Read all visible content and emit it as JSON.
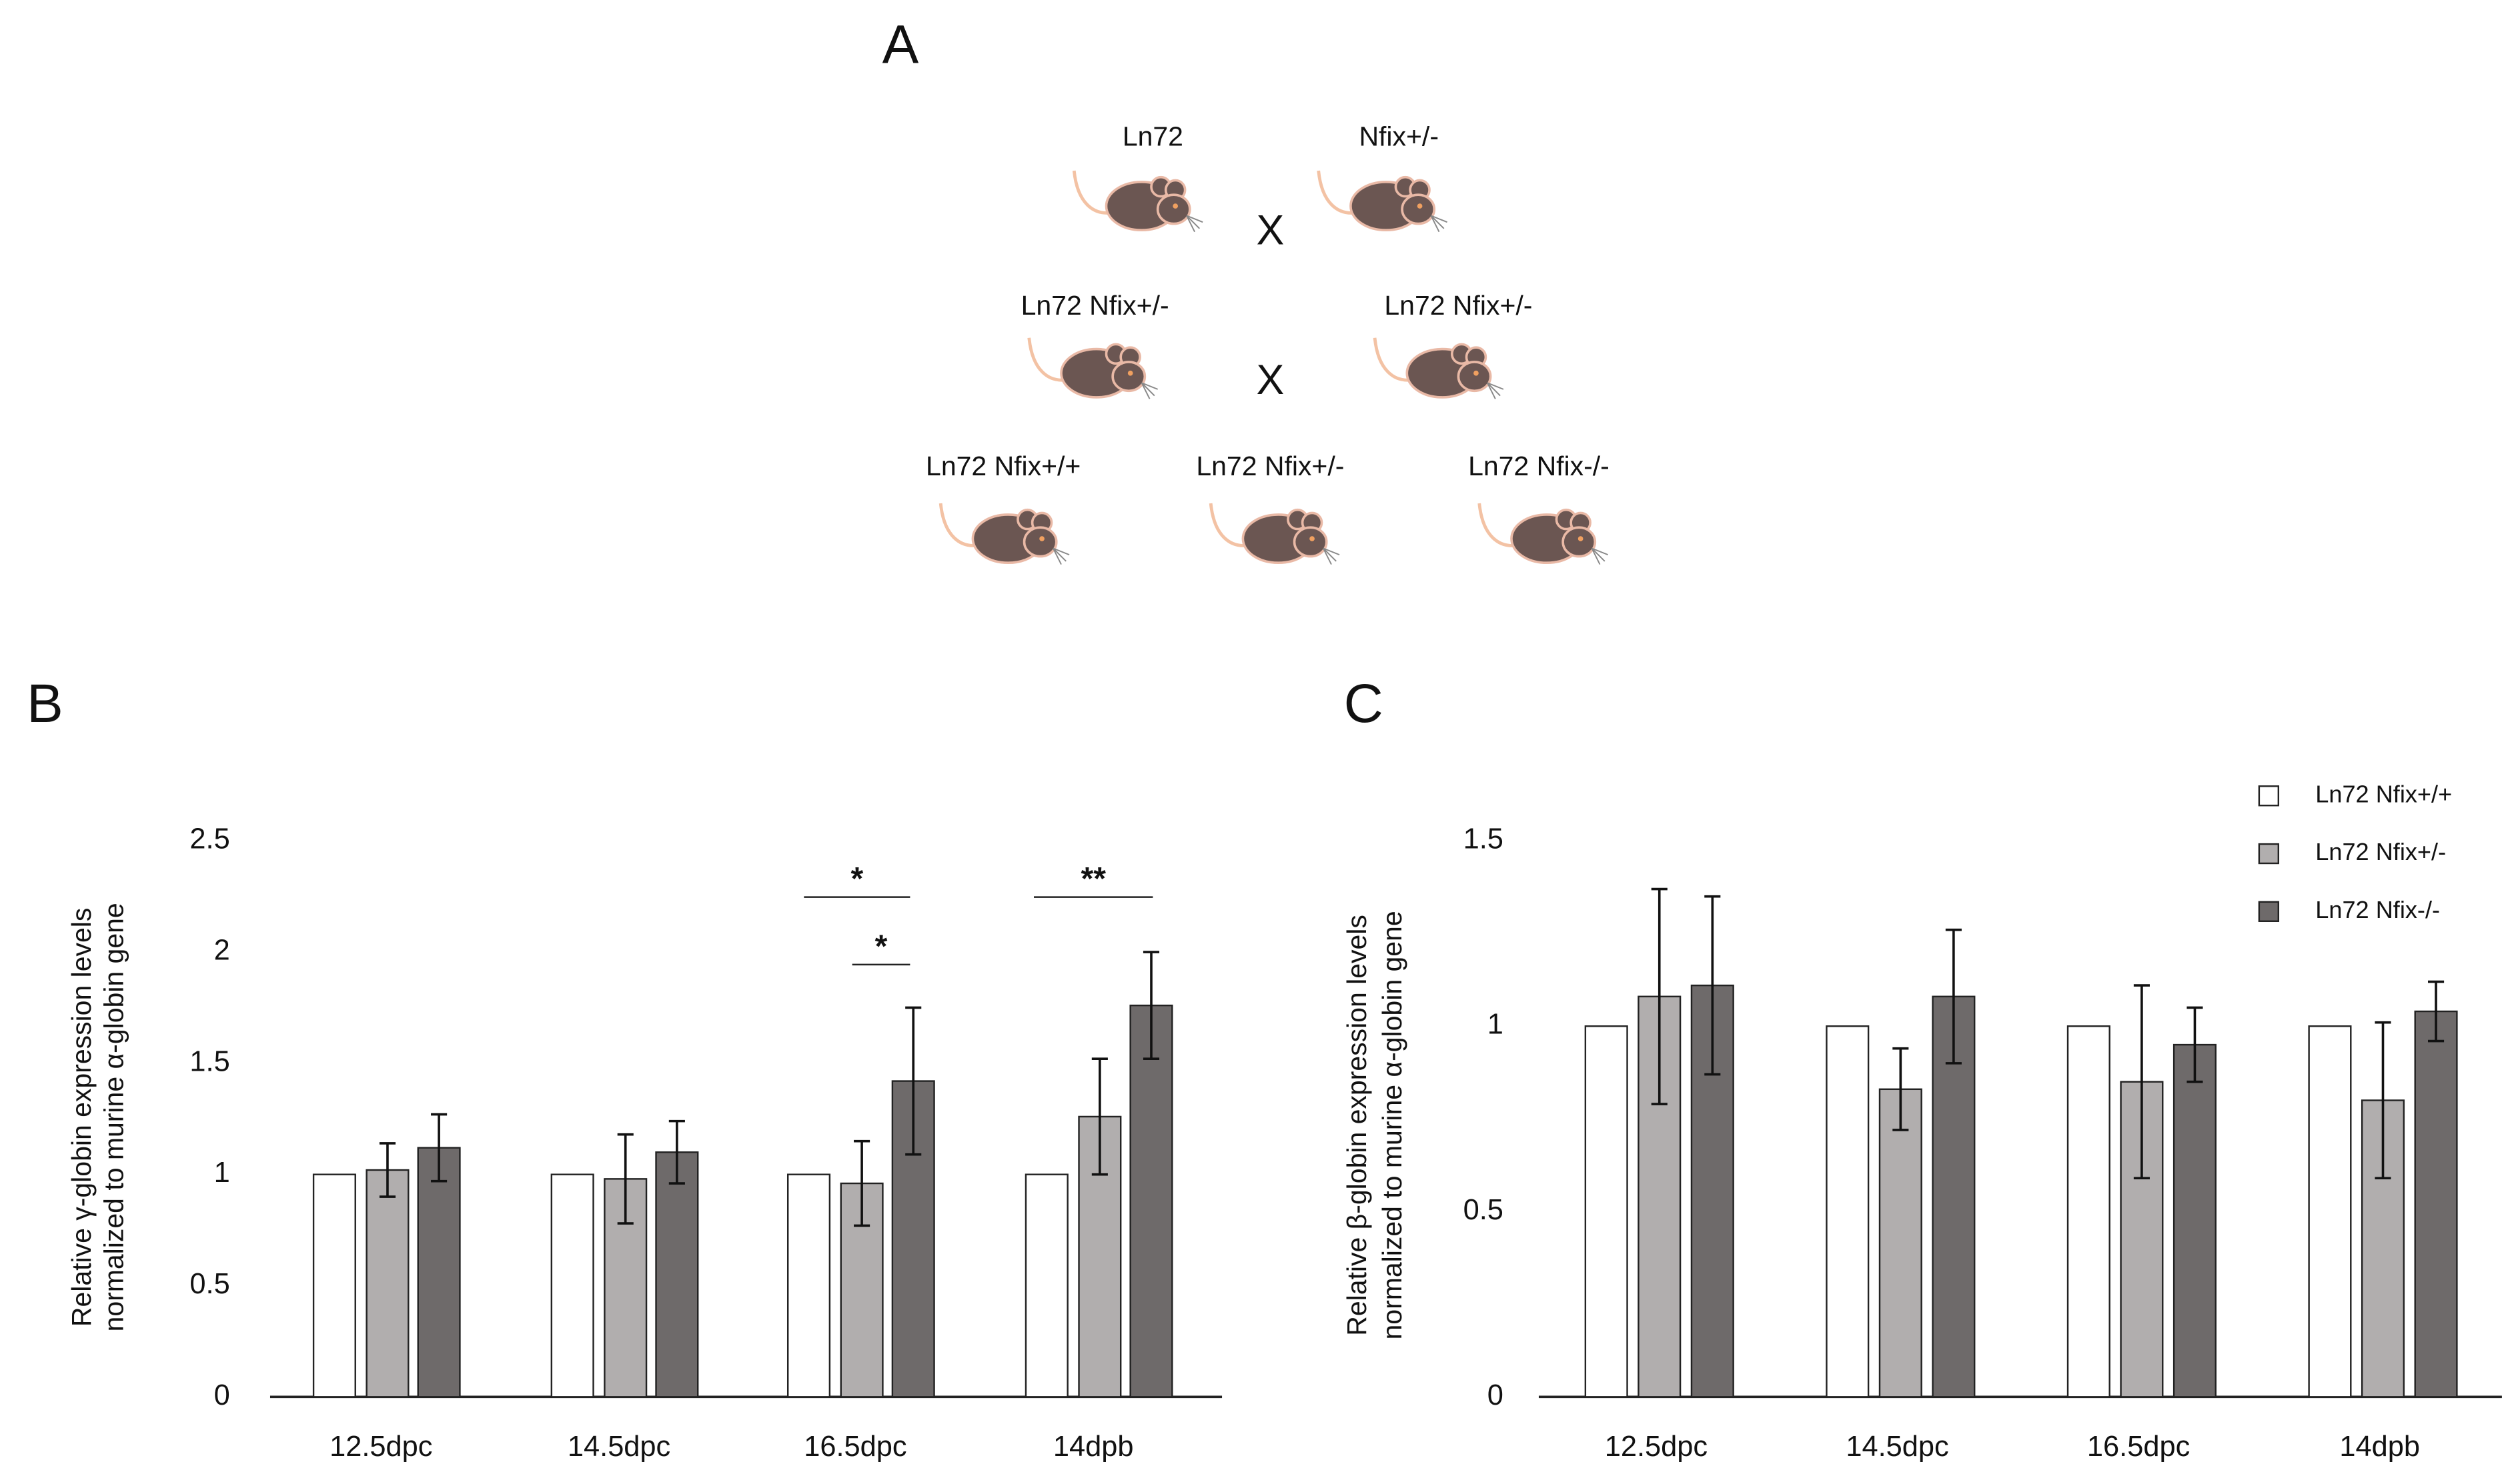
{
  "diagram": {
    "label": "A",
    "mice": [
      "Ln72",
      "Nfix+/-",
      "Ln72 Nfix+/-",
      "Ln72 Nfix+/-",
      "Ln72 Nfix+/+",
      "Ln72 Nfix+/-",
      "Ln72 Nfix-/-"
    ],
    "crosses": [
      "X",
      "X"
    ]
  },
  "chart_data": [
    {
      "type": "bar",
      "panel": "B",
      "ylabel": [
        "Relative γ-globin expression levels",
        "normalized to murine α-globin gene"
      ],
      "categories": [
        "12.5dpc",
        "14.5dpc",
        "16.5dpc",
        "14dpb"
      ],
      "ylim": [
        0,
        2.5
      ],
      "yticks": [
        0,
        0.5,
        1,
        1.5,
        2,
        2.5
      ],
      "series": [
        {
          "name": "Ln72 Nfix+/+",
          "color": "#ffffff",
          "values": [
            1,
            1,
            1,
            1
          ],
          "errors": [
            0,
            0,
            0,
            0
          ]
        },
        {
          "name": "Ln72 Nfix+/-",
          "color": "#b1aeae",
          "values": [
            1.02,
            0.98,
            0.96,
            1.26
          ],
          "errors": [
            0.12,
            0.2,
            0.19,
            0.26
          ]
        },
        {
          "name": "Ln72 Nfix-/-",
          "color": "#6e6a6a",
          "values": [
            1.12,
            1.1,
            1.42,
            1.76
          ],
          "errors": [
            0.15,
            0.14,
            0.33,
            0.24
          ]
        }
      ],
      "annotations": [
        "*",
        "*",
        "**"
      ]
    },
    {
      "type": "bar",
      "panel": "C",
      "ylabel": [
        "Relative β-globin expression levels",
        "normalized to murine α-globin gene"
      ],
      "categories": [
        "12.5dpc",
        "14.5dpc",
        "16.5dpc",
        "14dpb"
      ],
      "ylim": [
        0,
        1.5
      ],
      "yticks": [
        0,
        0.5,
        1,
        1.5
      ],
      "legend": "top-right",
      "series": [
        {
          "name": "Ln72 Nfix+/+",
          "color": "#ffffff",
          "values": [
            1,
            1,
            1,
            1
          ],
          "errors": [
            0,
            0,
            0,
            0
          ]
        },
        {
          "name": "Ln72 Nfix+/-",
          "color": "#b1aeae",
          "values": [
            1.08,
            0.83,
            0.85,
            0.8
          ],
          "errors": [
            0.29,
            0.11,
            0.26,
            0.21
          ]
        },
        {
          "name": "Ln72 Nfix-/-",
          "color": "#6e6a6a",
          "values": [
            1.11,
            1.08,
            0.95,
            1.04
          ],
          "errors": [
            0.24,
            0.18,
            0.1,
            0.08
          ]
        }
      ]
    }
  ]
}
